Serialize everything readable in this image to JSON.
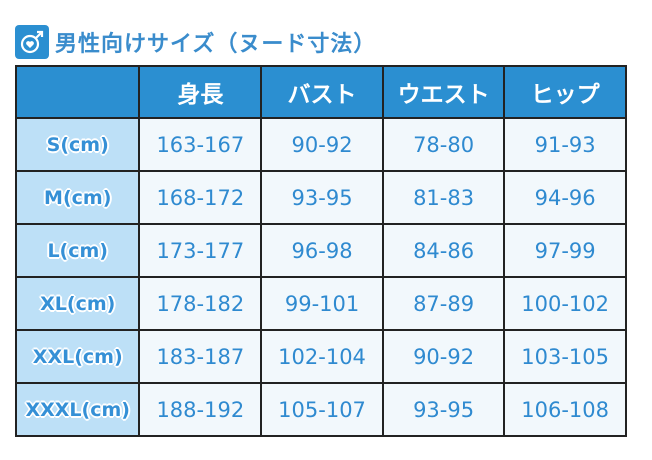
{
  "title": "男性向けサイズ（ヌード寸法）",
  "icon": "male-symbol-heart-icon",
  "colors": {
    "header_bg": "#2b8fd1",
    "size_col_bg": "#bde0f7",
    "cell_bg": "#f2f8fc",
    "text": "#2f8ad0"
  },
  "table": {
    "headers": [
      "",
      "身長",
      "バスト",
      "ウエスト",
      "ヒップ"
    ],
    "rows": [
      [
        "S(cm)",
        "163-167",
        "90-92",
        "78-80",
        "91-93"
      ],
      [
        "M(cm)",
        "168-172",
        "93-95",
        "81-83",
        "94-96"
      ],
      [
        "L(cm)",
        "173-177",
        "96-98",
        "84-86",
        "97-99"
      ],
      [
        "XL(cm)",
        "178-182",
        "99-101",
        "87-89",
        "100-102"
      ],
      [
        "XXL(cm)",
        "183-187",
        "102-104",
        "90-92",
        "103-105"
      ],
      [
        "XXXL(cm)",
        "188-192",
        "105-107",
        "93-95",
        "106-108"
      ]
    ]
  }
}
